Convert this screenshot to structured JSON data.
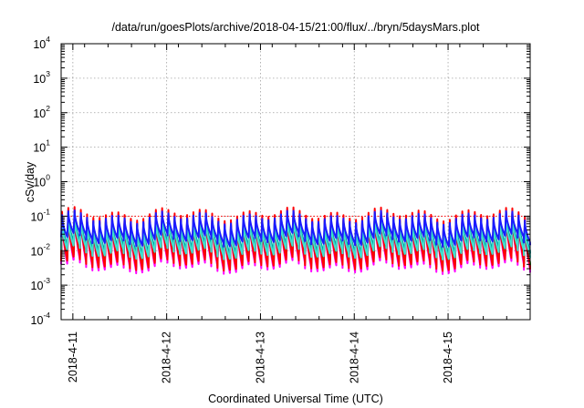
{
  "chart_data": {
    "type": "line",
    "title": "/data/run/goesPlots/archive/2018-04-15/21:00/flux/../bryn/5daysMars.plot",
    "xlabel": "Coordinated Universal Time (UTC)",
    "ylabel": "cSv/day",
    "yscale": "log",
    "ylim": [
      0.0001,
      10000
    ],
    "y_ticks": [
      {
        "base": "10",
        "exp": "-4",
        "value": 0.0001
      },
      {
        "base": "10",
        "exp": "-3",
        "value": 0.001
      },
      {
        "base": "10",
        "exp": "-2",
        "value": 0.01
      },
      {
        "base": "10",
        "exp": "-1",
        "value": 0.1
      },
      {
        "base": "10",
        "exp": "0",
        "value": 1
      },
      {
        "base": "10",
        "exp": "1",
        "value": 10
      },
      {
        "base": "10",
        "exp": "2",
        "value": 100
      },
      {
        "base": "10",
        "exp": "3",
        "value": 1000
      },
      {
        "base": "10",
        "exp": "4",
        "value": 10000
      }
    ],
    "xlim": [
      "2018-04-10 21:00",
      "2018-04-15 21:00"
    ],
    "x_ticks": [
      {
        "label": "2018-4-11",
        "value": "2018-04-11 00:00"
      },
      {
        "label": "2018-4-12",
        "value": "2018-04-12 00:00"
      },
      {
        "label": "2018-4-13",
        "value": "2018-04-13 00:00"
      },
      {
        "label": "2018-4-14",
        "value": "2018-04-14 00:00"
      },
      {
        "label": "2018-4-15",
        "value": "2018-04-15 00:00"
      }
    ],
    "reference_line": {
      "value": 0.1,
      "color": "#ff0000",
      "style": "dotted"
    },
    "grid": true,
    "oscillation_period_hours": 1.6,
    "series": [
      {
        "color": "#ff0000",
        "peak": 0.115,
        "trough": 0.0042
      },
      {
        "color": "#1a1aff",
        "peak": 0.092,
        "trough": 0.021
      },
      {
        "color": "#00a0a0",
        "peak": 0.075,
        "trough": 0.012
      },
      {
        "color": "#40e0d0",
        "peak": 0.06,
        "trough": 0.009
      },
      {
        "color": "#008000",
        "peak": 0.085,
        "trough": 0.0055
      },
      {
        "color": "#800080",
        "peak": 0.082,
        "trough": 0.0048
      },
      {
        "color": "#ff00ff",
        "peak": 0.1,
        "trough": 0.0034
      }
    ]
  }
}
